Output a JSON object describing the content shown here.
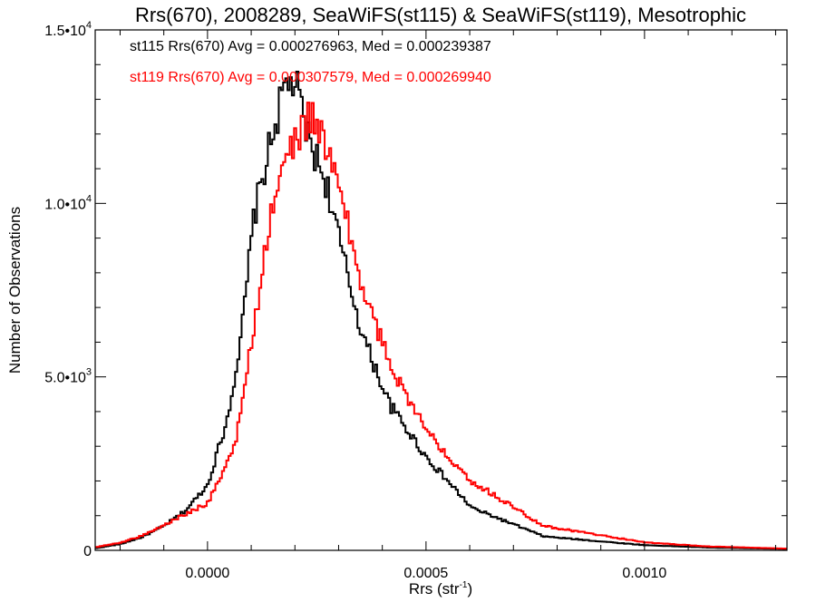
{
  "chart_data": {
    "type": "histogram",
    "title": "Rrs(670), 2008289, SeaWiFS(st115) & SeaWiFS(st119), Mesotrophic",
    "xlabel": "Rrs (str",
    "xlabel_sup": "-1",
    "xlabel_close": ")",
    "ylabel": "Number of Observations",
    "xlim": [
      -0.000257,
      0.001326
    ],
    "ylim": [
      0,
      15000
    ],
    "grid": false,
    "bin_width": 5e-06,
    "x_ticks": [
      {
        "value": 0.0,
        "label": "0.0000"
      },
      {
        "value": 0.0005,
        "label": "0.0005"
      },
      {
        "value": 0.001,
        "label": "0.0010"
      }
    ],
    "x_minor_step": 0.0001,
    "y_ticks": [
      {
        "value": 0,
        "mant": "0",
        "exp": ""
      },
      {
        "value": 5000,
        "mant": "5.0•10",
        "exp": "3"
      },
      {
        "value": 10000,
        "mant": "1.0•10",
        "exp": "4"
      },
      {
        "value": 15000,
        "mant": "1.5•10",
        "exp": "4"
      }
    ],
    "y_minor_step": 1000,
    "legend": [
      {
        "text": "st115 Rrs(670) Avg = 0.000276963, Med = 0.000239387",
        "color": "#000000"
      },
      {
        "text": "st119 Rrs(670) Avg = 0.000307579, Med = 0.000269940",
        "color": "#ff0000"
      }
    ],
    "legend_position": "top-left",
    "series": [
      {
        "name": "st115",
        "color": "#000000",
        "anchors_x": [
          -0.000257,
          -0.0002,
          -0.00015,
          -0.0001,
          -5e-05,
          0.0,
          4.35e-05,
          7.5e-05,
          0.000106,
          0.000147,
          0.000178,
          0.0002,
          0.00023,
          0.000272,
          0.000313,
          0.000355,
          0.000417,
          0.0005,
          0.000604,
          0.00077,
          0.001,
          0.00115,
          0.001326
        ],
        "anchors_y": [
          60,
          180,
          380,
          700,
          1150,
          1880,
          3700,
          5900,
          9600,
          11900,
          13400,
          13500,
          11900,
          10600,
          8300,
          6200,
          4200,
          2700,
          1230,
          400,
          150,
          80,
          40
        ]
      },
      {
        "name": "st119",
        "color": "#ff0000",
        "anchors_x": [
          -0.000257,
          -0.0002,
          -0.00015,
          -0.0001,
          -5e-05,
          0.0,
          6.43e-05,
          0.000106,
          0.000147,
          0.000188,
          0.00024,
          0.000292,
          0.000355,
          0.000417,
          0.0005,
          0.000604,
          0.00077,
          0.001,
          0.00115,
          0.001326
        ],
        "anchors_y": [
          90,
          220,
          420,
          720,
          1050,
          1360,
          3050,
          6450,
          9850,
          11550,
          12600,
          10900,
          7500,
          5400,
          3450,
          2000,
          700,
          230,
          110,
          50
        ]
      }
    ]
  }
}
